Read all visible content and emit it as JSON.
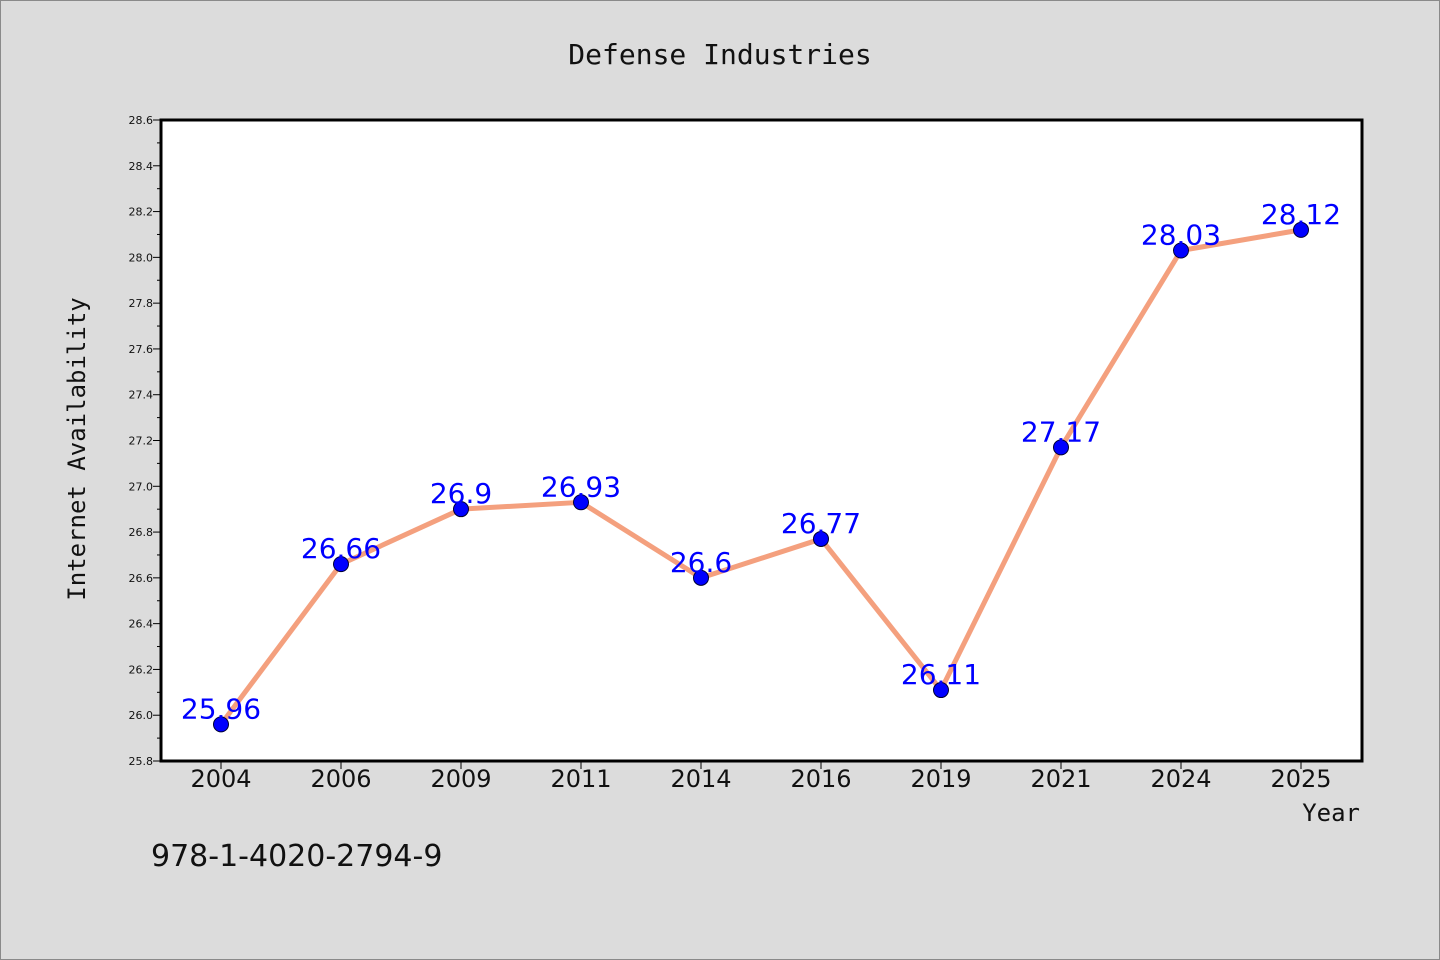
{
  "chart_data": {
    "type": "line",
    "title": "Defense Industries",
    "xlabel": "Year",
    "ylabel": "Internet Availability",
    "categories": [
      "2004",
      "2006",
      "2009",
      "2011",
      "2014",
      "2016",
      "2019",
      "2021",
      "2024",
      "2025"
    ],
    "series": [
      {
        "values": [
          25.96,
          26.66,
          26.9,
          26.93,
          26.6,
          26.77,
          26.11,
          27.17,
          28.03,
          28.12
        ],
        "data_labels": [
          "25.96",
          "26.66",
          "26.9",
          "26.93",
          "26.6",
          "26.77",
          "26.11",
          "27.17",
          "28.03",
          "28.12"
        ]
      }
    ],
    "ylim": [
      25.8,
      28.6
    ],
    "yticks": [
      "25.8",
      "26.0",
      "26.2",
      "26.4",
      "26.6",
      "26.8",
      "27.0",
      "27.2",
      "27.4",
      "27.6",
      "27.8",
      "28.0",
      "28.2",
      "28.4",
      "28.6"
    ],
    "grid": false,
    "colors": {
      "line": "#f4a07e",
      "marker": "#0000ff",
      "data_label": "#0000ff",
      "background": "#dcdcdc",
      "plot_background": "#ffffff"
    }
  },
  "annotation": "978-1-4020-2794-9"
}
